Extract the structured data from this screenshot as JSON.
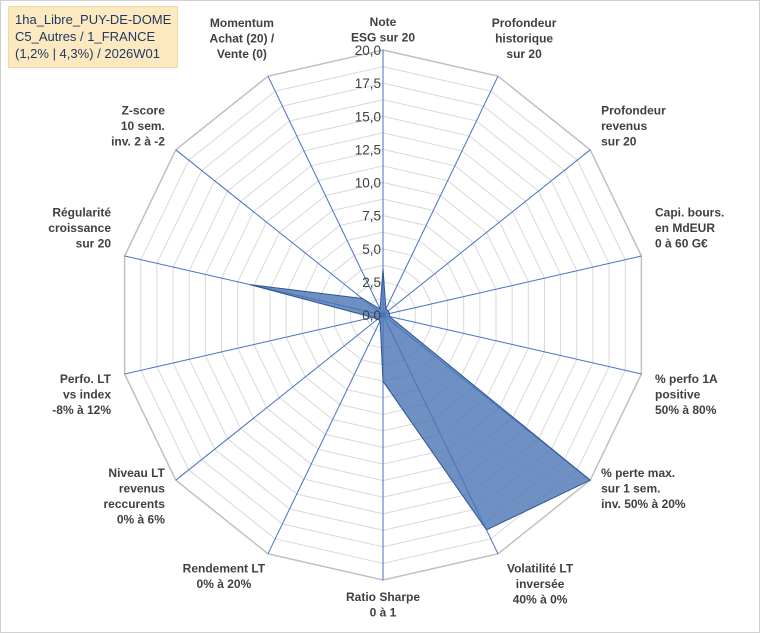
{
  "info_box": {
    "line1": "1ha_Libre_PUY-DE-DOME",
    "line2": "C5_Autres / 1_FRANCE",
    "line3": "(1,2% | 4,3%) / 2026W01"
  },
  "colors": {
    "grid": "#d9d9d9",
    "spoke": "#4472c4",
    "series_fill": "#4a74b4",
    "series_stroke": "#2f5597",
    "text": "#404040"
  },
  "chart_data": {
    "type": "radar",
    "title": "",
    "rmin": 0,
    "rmax": 20,
    "tick_step": 2.5,
    "tick_labels": [
      "0,0",
      "2,5",
      "5,0",
      "7,5",
      "10,0",
      "12,5",
      "15,0",
      "17,5",
      "20,0"
    ],
    "grid": true,
    "axes": [
      "Note ESG sur 20",
      "Profondeur historique sur 20",
      "Profondeur revenus sur 20",
      "Capi. bours. en MdEUR 0 à 60 G€",
      "% perfo 1A positive 50% à 80%",
      "% perte max. sur 1 sem. inv. 50% à 20%",
      "Volatilité LT inversée 40% à 0%",
      "Ratio Sharpe 0 à 1",
      "Rendement LT 0% à 20%",
      "Niveau LT revenus reccurents 0% à 6%",
      "Perfo. LT vs index -8% à 12%",
      "Régularité croissance sur 20",
      "Z-score 10 sem. inv. 2 à -2",
      "Momentum Achat (20) / Vente (0)"
    ],
    "axis_label_lines": [
      [
        "Note",
        "ESG sur 20"
      ],
      [
        "Profondeur",
        "historique",
        "sur 20"
      ],
      [
        "Profondeur",
        "revenus",
        "sur 20"
      ],
      [
        "Capi. bours.",
        "en MdEUR",
        "0 à 60 G€"
      ],
      [
        "% perfo 1A",
        "positive",
        "50% à 80%"
      ],
      [
        "% perte max.",
        "sur 1 sem.",
        "inv. 50% à 20%"
      ],
      [
        "Volatilité LT",
        "inversée",
        "40% à 0%"
      ],
      [
        "Ratio Sharpe",
        "0 à 1"
      ],
      [
        "Rendement LT",
        "0% à 20%"
      ],
      [
        "Niveau LT",
        "revenus",
        "reccurents",
        "0% à 6%"
      ],
      [
        "Perfo. LT",
        "vs index",
        "-8% à 12%"
      ],
      [
        "Régularité",
        "croissance",
        "sur 20"
      ],
      [
        "Z-score",
        "10 sem.",
        "inv. 2 à -2"
      ],
      [
        "Momentum",
        "Achat (20) /",
        "Vente (0)"
      ]
    ],
    "series": [
      {
        "values": [
          3.5,
          0.5,
          0.5,
          0.5,
          0.5,
          20.0,
          18.0,
          5.0,
          0.5,
          0.5,
          0.8,
          10.3,
          2.0,
          0.5
        ]
      }
    ]
  }
}
